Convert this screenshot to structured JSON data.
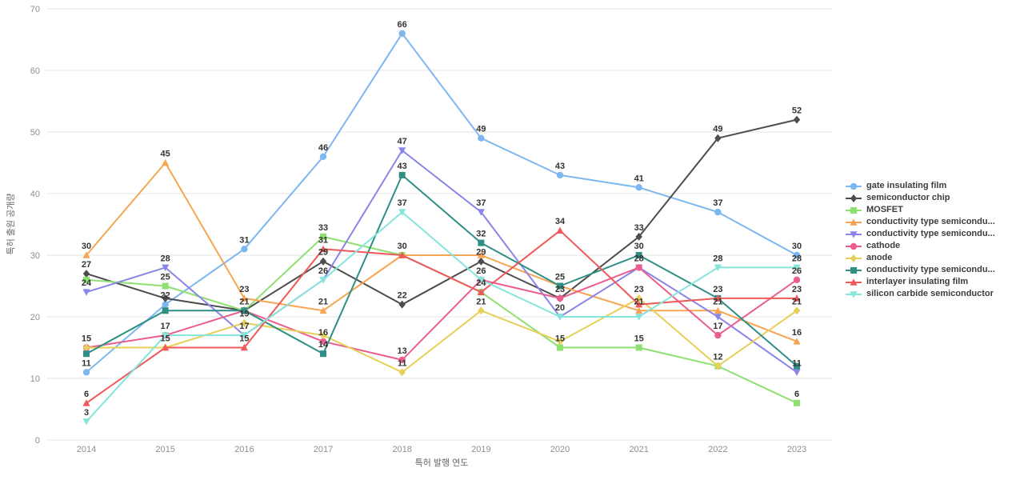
{
  "chart_data": {
    "type": "line",
    "title": "",
    "xlabel": "특허 발행 연도",
    "ylabel": "특허 출원 공개량",
    "x": [
      2014,
      2015,
      2016,
      2017,
      2018,
      2019,
      2020,
      2021,
      2022,
      2023
    ],
    "ylim": [
      0,
      70
    ],
    "yticks": [
      0,
      10,
      20,
      30,
      40,
      50,
      60,
      70
    ],
    "grid": true,
    "legend_position": "right",
    "background": "#ffffff",
    "gridline_color": "#e6e6e6",
    "label_color": "#333333",
    "series": [
      {
        "name": "gate insulating film",
        "color": "#7db7f0",
        "marker": "circle",
        "values": [
          11,
          22,
          31,
          46,
          66,
          49,
          43,
          41,
          37,
          30
        ]
      },
      {
        "name": "semiconductor chip",
        "color": "#4d4d4d",
        "marker": "diamond",
        "values": [
          27,
          23,
          21,
          29,
          22,
          29,
          23,
          33,
          49,
          52
        ]
      },
      {
        "name": "MOSFET",
        "color": "#8ee070",
        "marker": "square",
        "values": [
          26,
          25,
          21,
          33,
          30,
          24,
          15,
          15,
          12,
          6
        ]
      },
      {
        "name": "conductivity type semicondu...",
        "color": "#f7a552",
        "marker": "triangle-up",
        "values": [
          30,
          45,
          23,
          21,
          30,
          30,
          25,
          21,
          21,
          16
        ]
      },
      {
        "name": "conductivity type semicondu...",
        "color": "#8a86e9",
        "marker": "triangle-down",
        "values": [
          24,
          28,
          17,
          26,
          47,
          37,
          20,
          28,
          20,
          11
        ]
      },
      {
        "name": "cathode",
        "color": "#eb5d8e",
        "marker": "circle",
        "values": [
          15,
          17,
          21,
          16,
          13,
          26,
          23,
          28,
          17,
          26
        ]
      },
      {
        "name": "anode",
        "color": "#e7cf58",
        "marker": "diamond",
        "values": [
          15,
          15,
          19,
          17,
          11,
          21,
          16,
          23,
          12,
          21
        ]
      },
      {
        "name": "conductivity type semicondu...",
        "color": "#2f8f85",
        "marker": "square",
        "values": [
          14,
          21,
          21,
          14,
          43,
          32,
          25,
          30,
          23,
          12
        ]
      },
      {
        "name": "interlayer insulating film",
        "color": "#f0595a",
        "marker": "triangle-up",
        "values": [
          6,
          15,
          15,
          31,
          30,
          24,
          34,
          22,
          23,
          23
        ]
      },
      {
        "name": "silicon carbide semiconductor",
        "color": "#85e5dc",
        "marker": "triangle-down",
        "values": [
          3,
          17,
          17,
          26,
          37,
          26,
          20,
          20,
          28,
          28
        ]
      }
    ]
  }
}
